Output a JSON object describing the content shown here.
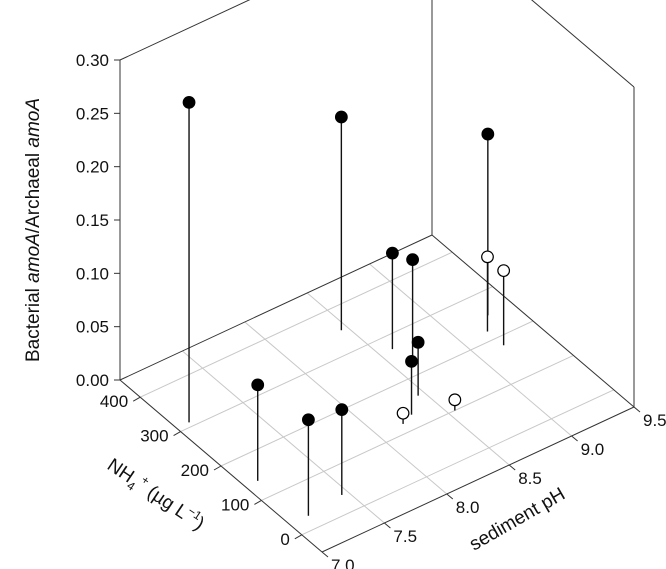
{
  "chart_data": {
    "type": "scatter",
    "subtype": "3d-stem",
    "title": "",
    "xlabel": "sediment pH",
    "ylabel": "NH4+ (µg L−1)",
    "ylabel_parts": {
      "base": "NH",
      "sub": "4",
      "sup1": "+",
      "mid": " (µg L",
      "sup2": "−1",
      "end": ")"
    },
    "zlabel": "Bacterial amoA/Archaeal amoA",
    "zlabel_parts": {
      "pre": "Bacterial ",
      "it1": "amoA",
      "mid": "/Archaeal ",
      "it2": "amoA"
    },
    "xlim": [
      7.0,
      9.5
    ],
    "ylim": [
      -50,
      450
    ],
    "zlim": [
      0.0,
      0.3
    ],
    "x_ticks": [
      "7.0",
      "7.5",
      "8.0",
      "8.5",
      "9.0",
      "9.5"
    ],
    "y_ticks": [
      "0",
      "100",
      "200",
      "300",
      "400"
    ],
    "z_ticks": [
      "0.00",
      "0.05",
      "0.10",
      "0.15",
      "0.20",
      "0.25",
      "0.30"
    ],
    "grid": true,
    "legend": "none",
    "series": [
      {
        "marker": "filled",
        "points": [
          {
            "x": 7.1,
            "y": 310,
            "z": 0.3
          },
          {
            "x": 7.1,
            "y": 140,
            "z": 0.09
          },
          {
            "x": 7.15,
            "y": 30,
            "z": 0.09
          },
          {
            "x": 7.45,
            "y": 40,
            "z": 0.08
          },
          {
            "x": 8.45,
            "y": 350,
            "z": 0.2
          },
          {
            "x": 8.6,
            "y": 220,
            "z": 0.1
          },
          {
            "x": 8.6,
            "y": 270,
            "z": 0.09
          },
          {
            "x": 8.3,
            "y": 130,
            "z": 0.05
          },
          {
            "x": 8.45,
            "y": 160,
            "z": 0.05
          },
          {
            "x": 9.3,
            "y": 250,
            "z": 0.17
          }
        ]
      },
      {
        "marker": "open",
        "points": [
          {
            "x": 8.2,
            "y": 120,
            "z": 0.01
          },
          {
            "x": 8.55,
            "y": 100,
            "z": 0.01
          },
          {
            "x": 9.2,
            "y": 220,
            "z": 0.07
          },
          {
            "x": 9.2,
            "y": 180,
            "z": 0.07
          }
        ]
      }
    ]
  }
}
